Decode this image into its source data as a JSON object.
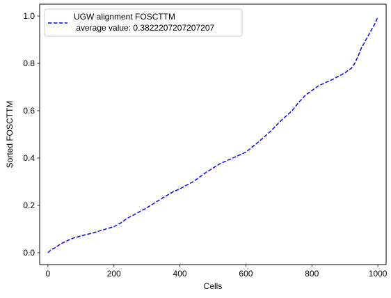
{
  "chart_data": {
    "type": "line",
    "xlabel": "Cells",
    "ylabel": "Sorted FOSCTTM",
    "xlim": [
      -25,
      1025
    ],
    "ylim": [
      -0.05,
      1.05
    ],
    "xticks": [
      0,
      200,
      400,
      600,
      800,
      1000
    ],
    "yticks": [
      0.0,
      0.2,
      0.4,
      0.6,
      0.8,
      1.0
    ],
    "xtick_labels": [
      "0",
      "200",
      "400",
      "600",
      "800",
      "1000"
    ],
    "ytick_labels": [
      "0.0",
      "0.2",
      "0.4",
      "0.6",
      "0.8",
      "1.0"
    ],
    "grid": false,
    "legend_position": "upper-left",
    "legend": {
      "line1": "UGW alignment FOSCTTM",
      "line2": " average value: 0.3822207207207207"
    },
    "series": [
      {
        "name": "UGW alignment FOSCTTM\n average value: 0.3822207207207207",
        "color": "#0000ff",
        "line_style": "dashed",
        "x": [
          0,
          10,
          20,
          40,
          60,
          80,
          100,
          140,
          180,
          200,
          220,
          240,
          260,
          300,
          340,
          380,
          400,
          440,
          480,
          520,
          560,
          600,
          640,
          680,
          700,
          720,
          740,
          760,
          780,
          800,
          820,
          840,
          860,
          880,
          900,
          920,
          930,
          940,
          950,
          960,
          970,
          980,
          990,
          1000
        ],
        "y": [
          0.0,
          0.013,
          0.02,
          0.038,
          0.052,
          0.063,
          0.071,
          0.085,
          0.102,
          0.11,
          0.125,
          0.145,
          0.16,
          0.19,
          0.225,
          0.258,
          0.27,
          0.3,
          0.34,
          0.375,
          0.4,
          0.425,
          0.47,
          0.52,
          0.55,
          0.575,
          0.6,
          0.635,
          0.665,
          0.685,
          0.705,
          0.718,
          0.73,
          0.745,
          0.76,
          0.78,
          0.8,
          0.83,
          0.865,
          0.89,
          0.915,
          0.94,
          0.965,
          0.995
        ]
      }
    ]
  }
}
